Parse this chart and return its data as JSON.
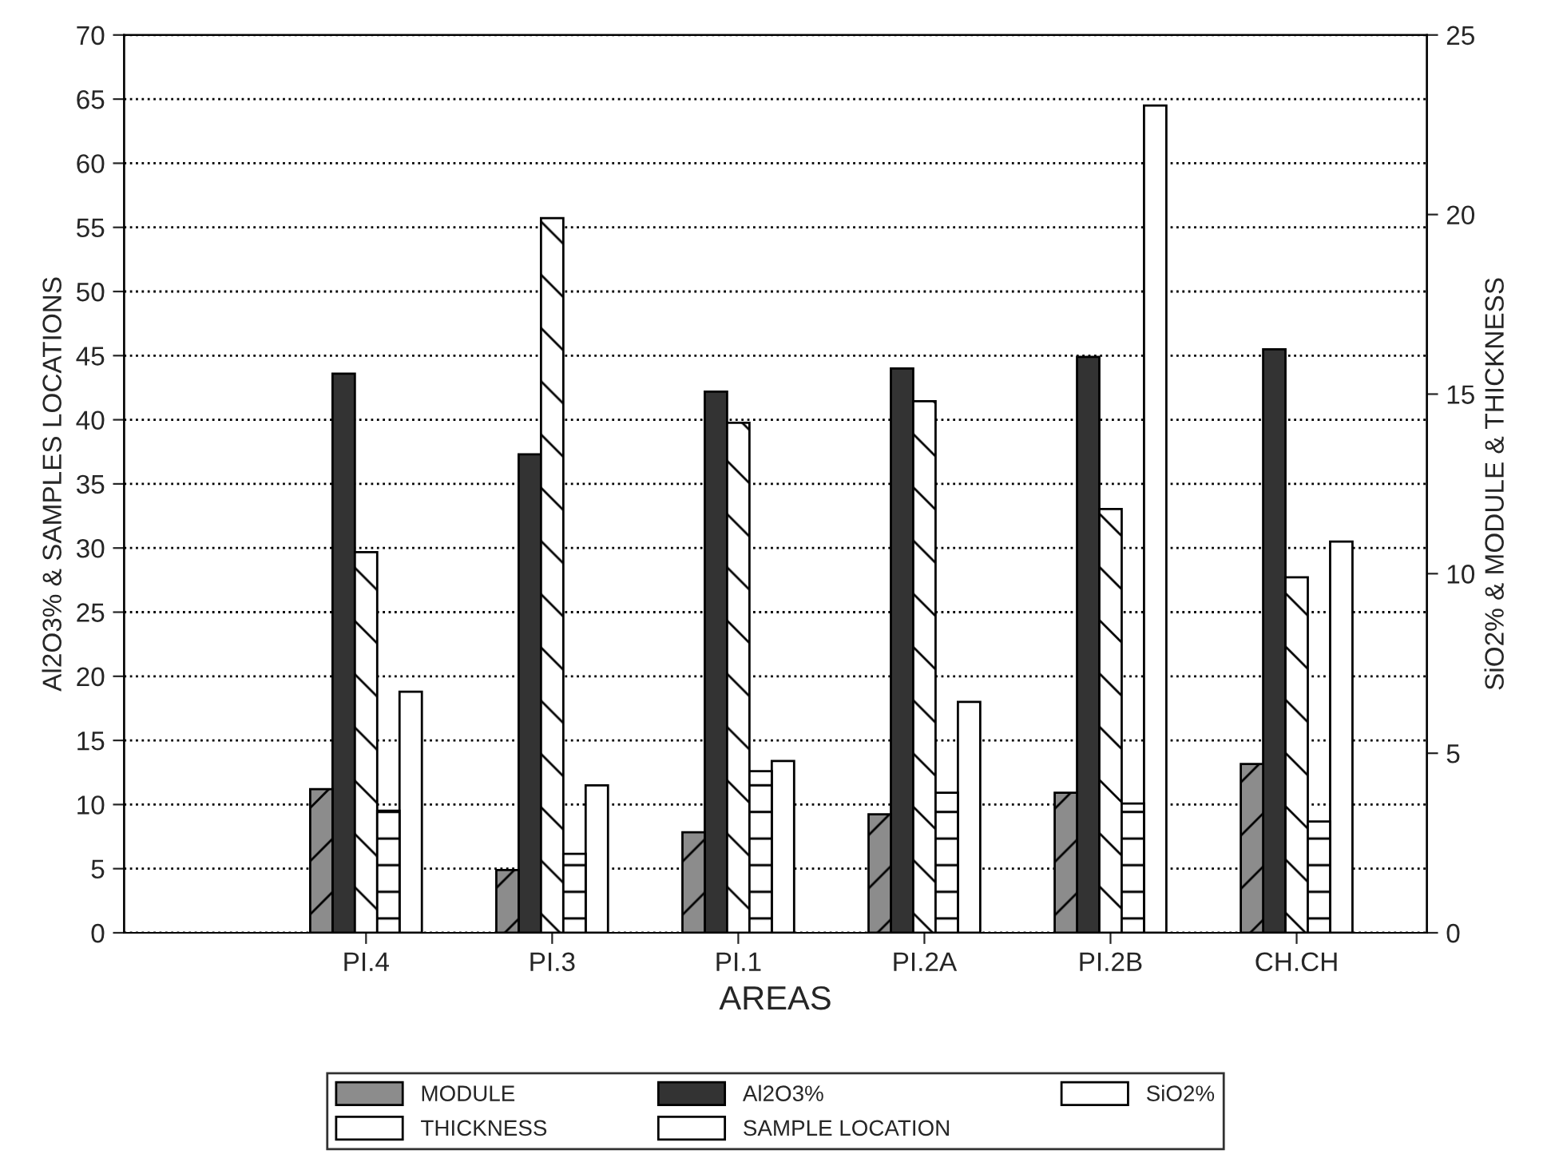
{
  "chart_data": {
    "type": "bar",
    "xlabel": "AREAS",
    "ylabel": "Al2O3% & SAMPLES LOCATIONS",
    "y2label": "SiO2% & MODULE & THICKNESS",
    "categories": [
      "PI.4",
      "PI.3",
      "PI.1",
      "PI.2A",
      "PI.2B",
      "CH.CH"
    ],
    "series": [
      {
        "name": "MODULE",
        "color": "#8c8c8c",
        "axis": "y2",
        "values": [
          4.0,
          1.75,
          2.8,
          3.3,
          3.9,
          4.7
        ]
      },
      {
        "name": "Al2O3%",
        "color": "#333333",
        "values": [
          43.6,
          37.3,
          42.2,
          44,
          44.9,
          45.5
        ]
      },
      {
        "name": "SiO2%",
        "color": "#ffffff",
        "axis": "y2",
        "values": [
          10.6,
          19.9,
          14.2,
          14.8,
          11.8,
          9.9
        ]
      },
      {
        "name": "THICKNESS",
        "color": "#ffffff",
        "axis": "y2",
        "values": [
          3.4,
          2.2,
          4.5,
          3.9,
          3.6,
          3.1
        ]
      },
      {
        "name": "SAMPLE LOCATION",
        "color": "#ffffff",
        "values": [
          18.8,
          11.5,
          13.4,
          18,
          64.5,
          30.5
        ]
      }
    ],
    "ylim": [
      0,
      70
    ],
    "yticks": [
      0,
      5,
      10,
      15,
      20,
      25,
      30,
      35,
      40,
      45,
      50,
      55,
      60,
      65,
      70
    ],
    "y2lim": [
      0,
      25
    ],
    "y2ticks": [
      0,
      5,
      10,
      15,
      20,
      25
    ],
    "grid": "y",
    "legend": "bottom"
  }
}
